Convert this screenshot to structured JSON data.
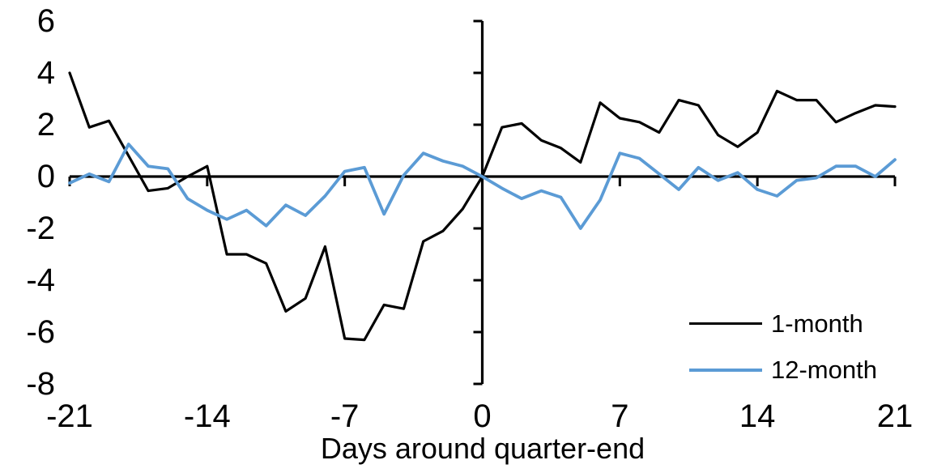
{
  "chart_data": {
    "type": "line",
    "title": "",
    "xlabel": "Days around quarter-end",
    "ylabel": "",
    "xlim": [
      -21,
      21
    ],
    "ylim": [
      -8,
      6
    ],
    "x_ticks": [
      -21,
      -14,
      -7,
      0,
      7,
      14,
      21
    ],
    "y_ticks": [
      6,
      4,
      2,
      0,
      -2,
      -4,
      -6,
      -8
    ],
    "grid": false,
    "legend_position": "lower-right",
    "axis_color": "#000000",
    "x": [
      -21,
      -20,
      -19,
      -18,
      -17,
      -16,
      -15,
      -14,
      -13,
      -12,
      -11,
      -10,
      -9,
      -8,
      -7,
      -6,
      -5,
      -4,
      -3,
      -2,
      -1,
      0,
      1,
      2,
      3,
      4,
      5,
      6,
      7,
      8,
      9,
      10,
      11,
      12,
      13,
      14,
      15,
      16,
      17,
      18,
      19,
      20,
      21
    ],
    "series": [
      {
        "name": "1-month",
        "color": "#000000",
        "values": [
          4.0,
          1.9,
          2.15,
          0.8,
          -0.55,
          -0.45,
          0.0,
          0.4,
          -3.0,
          -3.0,
          -3.35,
          -5.2,
          -4.7,
          -2.7,
          -6.25,
          -6.3,
          -4.95,
          -5.1,
          -2.5,
          -2.1,
          -1.25,
          0.0,
          1.9,
          2.05,
          1.4,
          1.1,
          0.55,
          2.85,
          2.25,
          2.1,
          1.7,
          2.95,
          2.75,
          1.6,
          1.15,
          1.7,
          3.3,
          2.95,
          2.95,
          2.1,
          2.45,
          2.75,
          2.7
        ]
      },
      {
        "name": "12-month",
        "color": "#5B9BD5",
        "values": [
          -0.25,
          0.1,
          -0.2,
          1.25,
          0.4,
          0.3,
          -0.85,
          -1.3,
          -1.65,
          -1.3,
          -1.9,
          -1.1,
          -1.5,
          -0.75,
          0.2,
          0.35,
          -1.45,
          0.05,
          0.9,
          0.6,
          0.4,
          0.0,
          -0.45,
          -0.85,
          -0.55,
          -0.8,
          -2.0,
          -0.9,
          0.9,
          0.7,
          0.1,
          -0.5,
          0.35,
          -0.15,
          0.15,
          -0.5,
          -0.75,
          -0.15,
          -0.05,
          0.4,
          0.4,
          0.0,
          0.65
        ]
      }
    ]
  }
}
